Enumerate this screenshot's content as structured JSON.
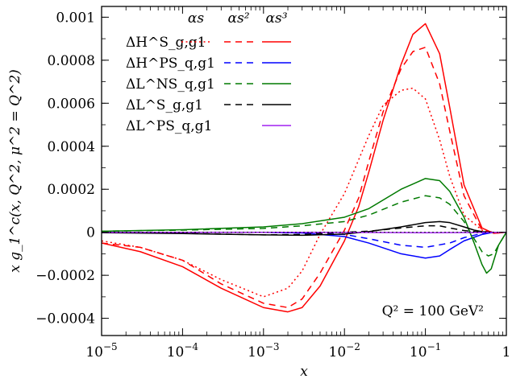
{
  "chart_data": {
    "type": "line",
    "title": "",
    "xscale": "log",
    "xlim": [
      1e-05,
      1
    ],
    "ylim": [
      -0.00048,
      0.00105
    ],
    "xlabel": "x",
    "ylabel": "x g_1^c(x, Q^2, μ^2 = Q^2)",
    "annotation": "Q² = 100 GeV²",
    "x_ticks": [
      {
        "value": 1e-05,
        "base": "10",
        "exp": "−5"
      },
      {
        "value": 0.0001,
        "base": "10",
        "exp": "−4"
      },
      {
        "value": 0.001,
        "base": "10",
        "exp": "−3"
      },
      {
        "value": 0.01,
        "base": "10",
        "exp": "−2"
      },
      {
        "value": 0.1,
        "base": "10",
        "exp": "−1"
      },
      {
        "value": 1,
        "base": "1",
        "exp": ""
      }
    ],
    "y_ticks": [
      {
        "value": 0.001,
        "label": "0.001"
      },
      {
        "value": 0.0008,
        "label": "0.0008"
      },
      {
        "value": 0.0006,
        "label": "0.0006"
      },
      {
        "value": 0.0004,
        "label": "0.0004"
      },
      {
        "value": 0.0002,
        "label": "0.0002"
      },
      {
        "value": 0,
        "label": "0"
      },
      {
        "value": -0.0002,
        "label": "−0.0002"
      },
      {
        "value": -0.0004,
        "label": "−0.0004"
      }
    ],
    "legend": {
      "placement": "top-left",
      "orders": [
        "αs",
        "αs²",
        "αs³"
      ],
      "rows": [
        {
          "label": "ΔH^S_g,g1",
          "color": "#ff0000",
          "orders": [
            1,
            2,
            3
          ]
        },
        {
          "label": "ΔH^PS_q,g1",
          "color": "#0000ff",
          "orders": [
            2,
            3
          ]
        },
        {
          "label": "ΔL^NS_q,g1",
          "color": "#007a00",
          "orders": [
            2,
            3
          ]
        },
        {
          "label": "ΔL^S_g,g1",
          "color": "#000000",
          "orders": [
            2,
            3
          ]
        },
        {
          "label": "ΔL^PS_q,g1",
          "color": "#a020f0",
          "orders": [
            3
          ]
        }
      ]
    },
    "series": [
      {
        "name": "ΔH^S_g,g1 αs",
        "color": "#ff0000",
        "style": "dotted",
        "x": [
          1e-05,
          3e-05,
          0.0001,
          0.0003,
          0.001,
          0.002,
          0.003,
          0.005,
          0.01,
          0.02,
          0.03,
          0.05,
          0.07,
          0.1,
          0.15,
          0.2,
          0.3,
          0.5,
          0.7,
          1
        ],
        "y": [
          -4e-05,
          -7e-05,
          -0.00013,
          -0.00022,
          -0.0003,
          -0.00026,
          -0.00018,
          -1e-05,
          0.00018,
          0.00045,
          0.00059,
          0.00066,
          0.00067,
          0.00062,
          0.00043,
          0.00026,
          8e-05,
          1e-05,
          0.0,
          0.0
        ]
      },
      {
        "name": "ΔH^S_g,g1 αs²",
        "color": "#ff0000",
        "style": "dashed",
        "x": [
          1e-05,
          3e-05,
          0.0001,
          0.0003,
          0.001,
          0.002,
          0.003,
          0.005,
          0.01,
          0.015,
          0.02,
          0.03,
          0.05,
          0.07,
          0.1,
          0.15,
          0.2,
          0.3,
          0.5,
          0.7,
          1
        ],
        "y": [
          -5e-05,
          -7e-05,
          -0.00013,
          -0.00024,
          -0.00033,
          -0.00035,
          -0.00031,
          -0.00019,
          1e-05,
          0.00016,
          0.00033,
          0.00056,
          0.00076,
          0.00084,
          0.00086,
          0.00069,
          0.00047,
          0.00017,
          1e-05,
          -5e-06,
          0.0
        ]
      },
      {
        "name": "ΔH^S_g,g1 αs³",
        "color": "#ff0000",
        "style": "solid",
        "x": [
          1e-05,
          3e-05,
          0.0001,
          0.0003,
          0.001,
          0.002,
          0.003,
          0.005,
          0.01,
          0.015,
          0.02,
          0.03,
          0.05,
          0.07,
          0.1,
          0.15,
          0.2,
          0.3,
          0.5,
          0.7,
          1
        ],
        "y": [
          -5e-05,
          -9e-05,
          -0.00016,
          -0.00026,
          -0.00035,
          -0.00037,
          -0.00035,
          -0.00025,
          -4e-05,
          0.00012,
          0.00028,
          0.00052,
          0.00078,
          0.00092,
          0.00097,
          0.00083,
          0.00058,
          0.00022,
          2e-05,
          -5e-06,
          0.0
        ]
      },
      {
        "name": "ΔH^PS_q,g1 αs²",
        "color": "#0000ff",
        "style": "dashed",
        "x": [
          1e-05,
          0.0001,
          0.001,
          0.003,
          0.01,
          0.02,
          0.05,
          0.1,
          0.2,
          0.3,
          0.5,
          0.7,
          1
        ],
        "y": [
          0.0,
          0.0,
          0.0,
          -3e-06,
          -1e-05,
          -3e-05,
          -6e-05,
          -7e-05,
          -5e-05,
          -2.5e-05,
          -5e-06,
          0.0,
          0.0
        ]
      },
      {
        "name": "ΔH^PS_q,g1 αs³",
        "color": "#0000ff",
        "style": "solid",
        "x": [
          1e-05,
          0.0001,
          0.001,
          0.003,
          0.01,
          0.02,
          0.05,
          0.1,
          0.15,
          0.2,
          0.3,
          0.5,
          0.7,
          1
        ],
        "y": [
          0.0,
          0.0,
          0.0,
          -3e-06,
          -2e-05,
          -5e-05,
          -0.0001,
          -0.00012,
          -0.00011,
          -8e-05,
          -4e-05,
          -1e-05,
          0.0,
          0.0
        ]
      },
      {
        "name": "ΔL^NS_q,g1 αs²",
        "color": "#007a00",
        "style": "dashed",
        "x": [
          1e-05,
          0.0001,
          0.001,
          0.003,
          0.01,
          0.02,
          0.05,
          0.1,
          0.15,
          0.2,
          0.3,
          0.4,
          0.5,
          0.6,
          0.7,
          0.8,
          1
        ],
        "y": [
          5e-06,
          1e-05,
          1.8e-05,
          3e-05,
          5e-05,
          8e-05,
          0.00014,
          0.00017,
          0.00016,
          0.00013,
          5e-05,
          -3e-05,
          -9e-05,
          -0.00011,
          -0.0001,
          -6e-05,
          0.0
        ]
      },
      {
        "name": "ΔL^NS_q,g1 αs³",
        "color": "#007a00",
        "style": "solid",
        "x": [
          1e-05,
          0.0001,
          0.001,
          0.003,
          0.01,
          0.02,
          0.05,
          0.1,
          0.15,
          0.2,
          0.3,
          0.4,
          0.5,
          0.57,
          0.65,
          0.8,
          1
        ],
        "y": [
          5e-06,
          1.2e-05,
          2.5e-05,
          4e-05,
          7e-05,
          0.00011,
          0.0002,
          0.00025,
          0.00024,
          0.00019,
          7e-05,
          -5e-05,
          -0.00015,
          -0.00019,
          -0.00017,
          -6e-05,
          0.0
        ]
      },
      {
        "name": "ΔL^S_g,g1 αs²",
        "color": "#000000",
        "style": "dashed",
        "x": [
          1e-05,
          0.0001,
          0.001,
          0.003,
          0.01,
          0.02,
          0.05,
          0.1,
          0.15,
          0.2,
          0.3,
          0.5,
          0.7,
          1
        ],
        "y": [
          0.0,
          -5e-06,
          -1.2e-05,
          -1e-05,
          0.0,
          5e-06,
          2e-05,
          3e-05,
          3e-05,
          2e-05,
          8e-06,
          0.0,
          0.0,
          0.0
        ]
      },
      {
        "name": "ΔL^S_g,g1 αs³",
        "color": "#000000",
        "style": "solid",
        "x": [
          1e-05,
          0.0001,
          0.001,
          0.003,
          0.01,
          0.02,
          0.05,
          0.1,
          0.15,
          0.2,
          0.3,
          0.4,
          0.5,
          0.7,
          1
        ],
        "y": [
          -2e-06,
          -6e-06,
          -1.2e-05,
          -1.4e-05,
          -8e-06,
          3e-06,
          2.5e-05,
          4.5e-05,
          5e-05,
          4.5e-05,
          2.5e-05,
          1e-05,
          3e-06,
          0.0,
          0.0
        ]
      },
      {
        "name": "ΔL^PS_q,g1 αs³",
        "color": "#a020f0",
        "style": "solid",
        "x": [
          1e-05,
          0.001,
          0.01,
          0.1,
          0.3,
          1
        ],
        "y": [
          0.0,
          0.0,
          0.0,
          -2e-06,
          -1e-06,
          0.0
        ]
      }
    ]
  }
}
